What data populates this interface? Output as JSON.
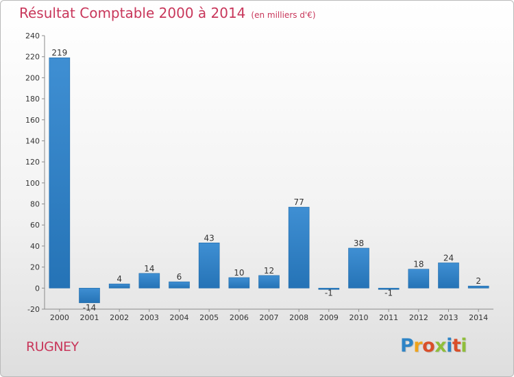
{
  "chart_data": {
    "type": "bar",
    "title": "Résultat Comptable 2000 à 2014",
    "subtitle": "(en milliers d'€)",
    "categories": [
      "2000",
      "2001",
      "2002",
      "2003",
      "2004",
      "2005",
      "2006",
      "2007",
      "2008",
      "2009",
      "2010",
      "2011",
      "2012",
      "2013",
      "2014"
    ],
    "values": [
      219,
      -14,
      4,
      14,
      6,
      43,
      10,
      12,
      77,
      -1,
      38,
      -1,
      18,
      24,
      2
    ],
    "value_labels": [
      "219",
      "-14",
      "4",
      "14",
      "6",
      "43",
      "10",
      "12",
      "77",
      "-1",
      "38",
      "-1",
      "18",
      "24",
      "2"
    ],
    "ylim": [
      -20,
      240
    ],
    "yticks": [
      -20,
      0,
      20,
      40,
      60,
      80,
      100,
      120,
      140,
      160,
      180,
      200,
      220,
      240
    ],
    "xlabel": "",
    "ylabel": "",
    "grid": false,
    "bar_color": "#3f8fd3",
    "bar_color_dark": "#2573b6"
  },
  "town": "RUGNEY",
  "brand": {
    "letters": [
      "P",
      "r",
      "o",
      "x",
      "i",
      "t",
      "i"
    ],
    "colors": [
      "#2e84c6",
      "#f0a31b",
      "#d94f2a",
      "#8fbe3a",
      "#2e84c6",
      "#d94f2a",
      "#8fbe3a"
    ]
  }
}
